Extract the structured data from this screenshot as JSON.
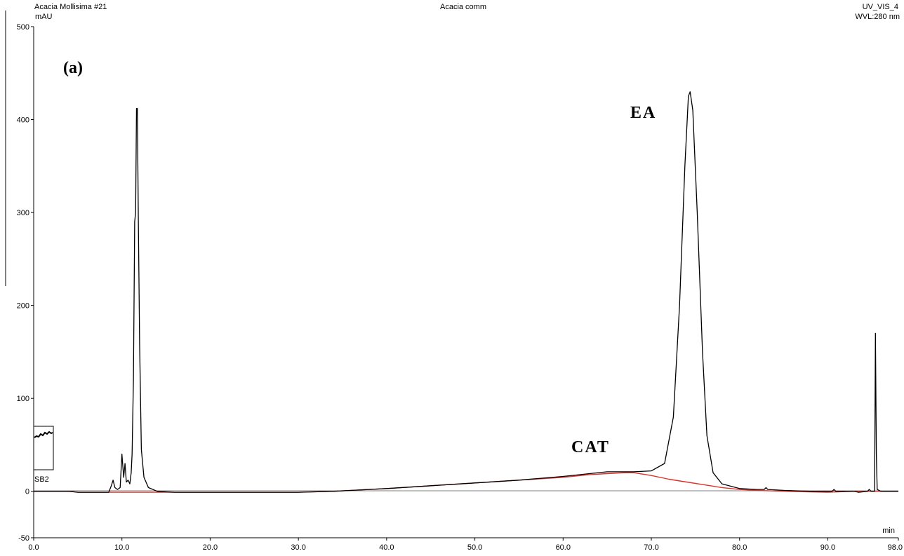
{
  "header": {
    "sample_name": "Acacia Mollisima #21",
    "program_name": "Acacia comm",
    "channel": "UV_VIS_4",
    "wavelength": "WVL:280 nm"
  },
  "panel_label": "(a)",
  "inset_label": "SB2",
  "chart_data": {
    "type": "line",
    "title": "",
    "xlabel": "min",
    "ylabel": "mAU",
    "xlim": [
      0,
      98
    ],
    "ylim": [
      -50,
      500
    ],
    "x_ticks": [
      0,
      10,
      20,
      30,
      40,
      50,
      60,
      70,
      80,
      90,
      98
    ],
    "x_tick_labels": [
      "0.0",
      "10.0",
      "20.0",
      "30.0",
      "40.0",
      "50.0",
      "60.0",
      "70.0",
      "80.0",
      "90.0",
      "98.0"
    ],
    "y_ticks": [
      -50,
      0,
      100,
      200,
      300,
      400,
      500
    ],
    "y_tick_labels": [
      "-50",
      "0",
      "100",
      "200",
      "300",
      "400",
      "500"
    ],
    "grid": false,
    "annotations": [
      {
        "text": "EA",
        "x": 68,
        "y": 405
      },
      {
        "text": "CAT",
        "x": 61,
        "y": 42
      }
    ],
    "series": [
      {
        "color": "#000000",
        "points": [
          [
            0,
            0
          ],
          [
            2,
            0
          ],
          [
            4,
            0
          ],
          [
            5,
            -1
          ],
          [
            6,
            -1
          ],
          [
            7,
            -1
          ],
          [
            8.5,
            -1
          ],
          [
            8.8,
            6
          ],
          [
            9.0,
            12
          ],
          [
            9.2,
            4
          ],
          [
            9.5,
            2
          ],
          [
            9.8,
            4
          ],
          [
            10.0,
            40
          ],
          [
            10.2,
            15
          ],
          [
            10.35,
            30
          ],
          [
            10.5,
            10
          ],
          [
            10.7,
            12
          ],
          [
            10.9,
            8
          ],
          [
            11.05,
            20
          ],
          [
            11.15,
            40
          ],
          [
            11.3,
            120
          ],
          [
            11.45,
            290
          ],
          [
            11.55,
            300
          ],
          [
            11.65,
            412
          ],
          [
            11.75,
            412
          ],
          [
            11.85,
            300
          ],
          [
            12.0,
            160
          ],
          [
            12.2,
            45
          ],
          [
            12.5,
            15
          ],
          [
            13.0,
            4
          ],
          [
            14,
            0
          ],
          [
            16,
            -1
          ],
          [
            20,
            -1
          ],
          [
            25,
            -1
          ],
          [
            30,
            -1
          ],
          [
            34,
            0
          ],
          [
            40,
            3
          ],
          [
            45,
            6
          ],
          [
            50,
            9
          ],
          [
            55,
            12
          ],
          [
            60,
            16
          ],
          [
            63,
            19
          ],
          [
            65,
            21
          ],
          [
            68,
            21
          ],
          [
            70,
            22
          ],
          [
            71.5,
            30
          ],
          [
            72.5,
            80
          ],
          [
            73.2,
            200
          ],
          [
            73.8,
            350
          ],
          [
            74.2,
            425
          ],
          [
            74.4,
            430
          ],
          [
            74.7,
            410
          ],
          [
            75.2,
            300
          ],
          [
            75.8,
            150
          ],
          [
            76.3,
            60
          ],
          [
            77,
            20
          ],
          [
            78,
            8
          ],
          [
            80,
            3
          ],
          [
            82,
            2
          ],
          [
            82.8,
            2
          ],
          [
            83.0,
            4
          ],
          [
            83.2,
            2
          ],
          [
            85,
            1
          ],
          [
            88,
            0
          ],
          [
            90.5,
            0
          ],
          [
            90.7,
            2
          ],
          [
            90.9,
            0
          ],
          [
            93,
            0
          ],
          [
            93.5,
            -1
          ],
          [
            94.5,
            0
          ],
          [
            94.7,
            2
          ],
          [
            94.9,
            0
          ],
          [
            95.3,
            0
          ],
          [
            95.4,
            170
          ],
          [
            95.5,
            40
          ],
          [
            95.6,
            2
          ],
          [
            96,
            0
          ],
          [
            98,
            0
          ]
        ]
      },
      {
        "color": "#e0302a",
        "points": [
          [
            0,
            0
          ],
          [
            2,
            0
          ],
          [
            4,
            0
          ],
          [
            5,
            -1
          ],
          [
            8.5,
            -1
          ],
          [
            10,
            -1
          ],
          [
            14,
            -1
          ],
          [
            20,
            -1
          ],
          [
            30,
            -1
          ],
          [
            34,
            0
          ],
          [
            40,
            3
          ],
          [
            45,
            6
          ],
          [
            50,
            9
          ],
          [
            55,
            12
          ],
          [
            60,
            15
          ],
          [
            63,
            18
          ],
          [
            65,
            19
          ],
          [
            67,
            20
          ],
          [
            68,
            20
          ],
          [
            70,
            17
          ],
          [
            72,
            13
          ],
          [
            74,
            10
          ],
          [
            76,
            7
          ],
          [
            78,
            4
          ],
          [
            80,
            2
          ],
          [
            82,
            1
          ],
          [
            85,
            0
          ],
          [
            90,
            -1
          ],
          [
            93,
            0
          ],
          [
            95,
            0
          ],
          [
            98,
            0
          ]
        ]
      }
    ]
  }
}
